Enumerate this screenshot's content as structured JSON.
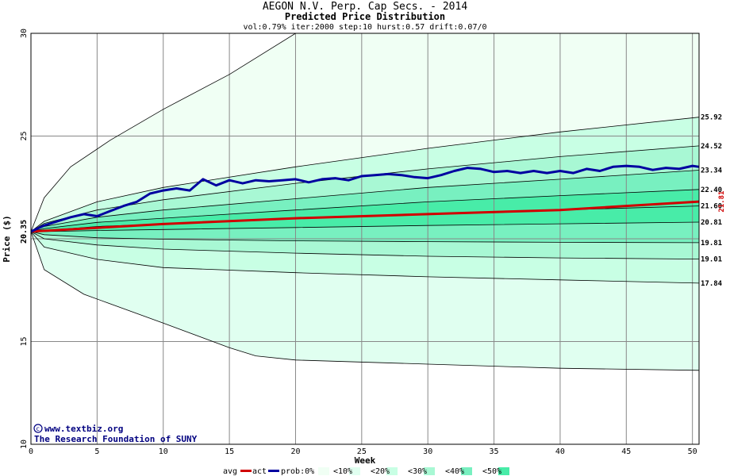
{
  "chart_data": {
    "type": "line",
    "title": "AEGON N.V. Perp. Cap Secs. - 2014",
    "subtitle": "Predicted Price Distribution",
    "params": "vol:0.79% iter:2000 step:10 hurst:0.57 drift:0.07/0",
    "xlabel": "Week",
    "ylabel": "Price ($)",
    "xlim": [
      0,
      50.5
    ],
    "ylim": [
      10,
      30
    ],
    "x_ticks": [
      0,
      5,
      10,
      15,
      20,
      25,
      30,
      35,
      40,
      45,
      50
    ],
    "y_ticks": [
      10,
      15,
      20,
      25,
      30
    ],
    "start_price": 20.35,
    "start_label": "20.35",
    "end_label": "21.81",
    "band_colors": {
      "outer": "#f0fff4",
      "b10": "#e0fff0",
      "b20": "#c8ffe4",
      "b30": "#a8f8d4",
      "b40": "#78f0c0",
      "b50": "#48eca8"
    },
    "envelopes": [
      {
        "name": "max",
        "points": [
          [
            0,
            20.35
          ],
          [
            1,
            22
          ],
          [
            3,
            23.5
          ],
          [
            6,
            24.8
          ],
          [
            10,
            26.3
          ],
          [
            15,
            28
          ],
          [
            20,
            30
          ],
          [
            30,
            30
          ],
          [
            40,
            30
          ],
          [
            50.5,
            30
          ]
        ]
      },
      {
        "name": "p_hi1",
        "label": "25.92",
        "points": [
          [
            0,
            20.35
          ],
          [
            1,
            20.85
          ],
          [
            5,
            21.8
          ],
          [
            10,
            22.5
          ],
          [
            20,
            23.5
          ],
          [
            30,
            24.4
          ],
          [
            40,
            25.2
          ],
          [
            50.5,
            25.92
          ]
        ]
      },
      {
        "name": "p_hi2",
        "label": "24.52",
        "points": [
          [
            0,
            20.35
          ],
          [
            1,
            20.75
          ],
          [
            5,
            21.4
          ],
          [
            10,
            21.9
          ],
          [
            20,
            22.7
          ],
          [
            30,
            23.4
          ],
          [
            40,
            24
          ],
          [
            50.5,
            24.52
          ]
        ]
      },
      {
        "name": "p_hi3",
        "label": "23.34",
        "points": [
          [
            0,
            20.35
          ],
          [
            1,
            20.6
          ],
          [
            5,
            21.05
          ],
          [
            10,
            21.4
          ],
          [
            20,
            21.95
          ],
          [
            30,
            22.5
          ],
          [
            40,
            22.9
          ],
          [
            50.5,
            23.34
          ]
        ]
      },
      {
        "name": "p_hi4",
        "label": "22.40",
        "points": [
          [
            0,
            20.35
          ],
          [
            1,
            20.5
          ],
          [
            5,
            20.8
          ],
          [
            10,
            21
          ],
          [
            20,
            21.4
          ],
          [
            30,
            21.8
          ],
          [
            40,
            22.1
          ],
          [
            50.5,
            22.4
          ]
        ]
      },
      {
        "name": "p_mid",
        "label": "21.60",
        "points": [
          [
            0,
            20.35
          ],
          [
            1,
            20.4
          ],
          [
            5,
            20.6
          ],
          [
            10,
            20.72
          ],
          [
            20,
            21
          ],
          [
            30,
            21.2
          ],
          [
            40,
            21.4
          ],
          [
            50.5,
            21.6
          ]
        ]
      },
      {
        "name": "p_lo1",
        "label": "20.81",
        "points": [
          [
            0,
            20.35
          ],
          [
            1,
            20.35
          ],
          [
            5,
            20.4
          ],
          [
            10,
            20.45
          ],
          [
            20,
            20.55
          ],
          [
            30,
            20.65
          ],
          [
            40,
            20.73
          ],
          [
            50.5,
            20.81
          ]
        ]
      },
      {
        "name": "p_lo2",
        "label": "19.81",
        "points": [
          [
            0,
            20.35
          ],
          [
            1,
            20.2
          ],
          [
            5,
            20.05
          ],
          [
            10,
            19.98
          ],
          [
            20,
            19.9
          ],
          [
            30,
            19.86
          ],
          [
            40,
            19.83
          ],
          [
            50.5,
            19.81
          ]
        ]
      },
      {
        "name": "p_lo3",
        "label": "19.01",
        "points": [
          [
            0,
            20.35
          ],
          [
            1,
            20
          ],
          [
            5,
            19.7
          ],
          [
            10,
            19.5
          ],
          [
            20,
            19.3
          ],
          [
            30,
            19.15
          ],
          [
            40,
            19.07
          ],
          [
            50.5,
            19.01
          ]
        ]
      },
      {
        "name": "p_lo4",
        "label": "17.84",
        "points": [
          [
            0,
            20.35
          ],
          [
            1,
            19.6
          ],
          [
            5,
            19
          ],
          [
            10,
            18.6
          ],
          [
            20,
            18.35
          ],
          [
            30,
            18.15
          ],
          [
            40,
            18
          ],
          [
            50.5,
            17.84
          ]
        ]
      },
      {
        "name": "min",
        "points": [
          [
            0,
            20.35
          ],
          [
            1,
            18.5
          ],
          [
            4,
            17.3
          ],
          [
            10,
            15.9
          ],
          [
            15,
            14.7
          ],
          [
            17,
            14.3
          ],
          [
            20,
            14.1
          ],
          [
            30,
            13.9
          ],
          [
            40,
            13.7
          ],
          [
            50.5,
            13.6
          ]
        ]
      }
    ],
    "series": [
      {
        "name": "avg",
        "color": "#d00000",
        "points": [
          [
            0,
            20.35
          ],
          [
            10,
            20.72
          ],
          [
            20,
            21
          ],
          [
            30,
            21.2
          ],
          [
            40,
            21.4
          ],
          [
            50.5,
            21.81
          ]
        ]
      },
      {
        "name": "act",
        "color": "#0000a0",
        "points": [
          [
            0,
            20.35
          ],
          [
            1,
            20.65
          ],
          [
            2,
            20.85
          ],
          [
            3,
            21.05
          ],
          [
            4,
            21.2
          ],
          [
            5,
            21.1
          ],
          [
            6,
            21.35
          ],
          [
            7,
            21.6
          ],
          [
            8,
            21.8
          ],
          [
            9,
            22.2
          ],
          [
            10,
            22.35
          ],
          [
            11,
            22.45
          ],
          [
            12,
            22.35
          ],
          [
            13,
            22.9
          ],
          [
            14,
            22.6
          ],
          [
            15,
            22.85
          ],
          [
            16,
            22.7
          ],
          [
            17,
            22.85
          ],
          [
            18,
            22.8
          ],
          [
            19,
            22.85
          ],
          [
            20,
            22.9
          ],
          [
            21,
            22.75
          ],
          [
            22,
            22.9
          ],
          [
            23,
            22.95
          ],
          [
            24,
            22.85
          ],
          [
            25,
            23.05
          ],
          [
            26,
            23.1
          ],
          [
            27,
            23.15
          ],
          [
            28,
            23.1
          ],
          [
            29,
            23.0
          ],
          [
            30,
            22.95
          ],
          [
            31,
            23.1
          ],
          [
            32,
            23.3
          ],
          [
            33,
            23.45
          ],
          [
            34,
            23.4
          ],
          [
            35,
            23.25
          ],
          [
            36,
            23.3
          ],
          [
            37,
            23.2
          ],
          [
            38,
            23.3
          ],
          [
            39,
            23.2
          ],
          [
            40,
            23.3
          ],
          [
            41,
            23.2
          ],
          [
            42,
            23.4
          ],
          [
            43,
            23.3
          ],
          [
            44,
            23.5
          ],
          [
            45,
            23.55
          ],
          [
            46,
            23.5
          ],
          [
            47,
            23.35
          ],
          [
            48,
            23.45
          ],
          [
            49,
            23.4
          ],
          [
            50,
            23.55
          ],
          [
            50.5,
            23.5
          ]
        ]
      }
    ],
    "right_labels": [
      "25.92",
      "24.52",
      "23.34",
      "22.40",
      "21.60",
      "20.81",
      "19.81",
      "19.01",
      "17.84"
    ],
    "legend": {
      "avg": "avg",
      "act": "act",
      "prob": "prob:0%",
      "items": [
        "<10%",
        "<20%",
        "<30%",
        "<40%",
        "<50%"
      ]
    },
    "credit_url": "www.textbiz.org",
    "credit_org": "The Research Foundation of SUNY"
  }
}
